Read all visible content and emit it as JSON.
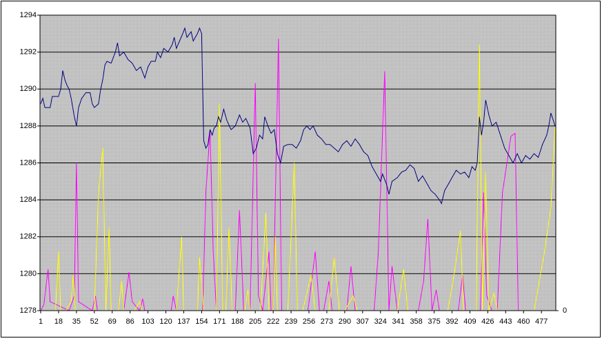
{
  "chart_data": {
    "type": "line",
    "xlim": [
      1,
      490
    ],
    "xticks": [
      1,
      18,
      35,
      52,
      69,
      86,
      103,
      120,
      137,
      154,
      171,
      188,
      205,
      222,
      239,
      256,
      273,
      290,
      307,
      324,
      341,
      358,
      375,
      392,
      409,
      426,
      443,
      460,
      477
    ],
    "ylim": [
      1278,
      1294
    ],
    "yticks": [
      1278,
      1280,
      1282,
      1284,
      1286,
      1288,
      1290,
      1292,
      1294
    ],
    "y2lim": [
      0,
      100
    ],
    "y2ticks": [
      0
    ],
    "grid": true,
    "series": [
      {
        "color": "#000080",
        "x": [
          1,
          3,
          5,
          10,
          12,
          18,
          20,
          22,
          24,
          26,
          28,
          30,
          33,
          35,
          37,
          40,
          44,
          48,
          50,
          52,
          56,
          58,
          60,
          62,
          64,
          68,
          72,
          74,
          76,
          80,
          84,
          88,
          92,
          96,
          100,
          103,
          106,
          110,
          112,
          115,
          118,
          122,
          126,
          128,
          130,
          133,
          136,
          138,
          140,
          144,
          146,
          150,
          152,
          154,
          155,
          156,
          158,
          160,
          162,
          164,
          166,
          168,
          170,
          172,
          175,
          178,
          182,
          186,
          190,
          193,
          196,
          200,
          203,
          206,
          209,
          212,
          214,
          217,
          220,
          223,
          226,
          229,
          232,
          236,
          240,
          244,
          248,
          251,
          254,
          257,
          260,
          264,
          268,
          272,
          276,
          280,
          284,
          288,
          292,
          296,
          300,
          304,
          308,
          312,
          316,
          320,
          324,
          326,
          330,
          332,
          335,
          340,
          344,
          348,
          352,
          356,
          360,
          364,
          368,
          372,
          376,
          380,
          382,
          385,
          388,
          392,
          396,
          400,
          404,
          408,
          411,
          414,
          416,
          418,
          420,
          422,
          424,
          427,
          430,
          434,
          438,
          442,
          446,
          450,
          454,
          458,
          462,
          466,
          470,
          474,
          478,
          482,
          484,
          486,
          490
        ],
        "values": [
          1289.2,
          1289.5,
          1289.0,
          1289.0,
          1289.6,
          1289.6,
          1290.0,
          1291.0,
          1290.5,
          1290.2,
          1290.0,
          1289.5,
          1288.5,
          1288.0,
          1289.0,
          1289.5,
          1289.8,
          1289.8,
          1289.2,
          1289.0,
          1289.2,
          1290.0,
          1290.5,
          1291.3,
          1291.5,
          1291.4,
          1292.0,
          1292.5,
          1291.8,
          1292.0,
          1291.6,
          1291.4,
          1291.0,
          1291.2,
          1290.6,
          1291.2,
          1291.5,
          1291.5,
          1292.0,
          1291.7,
          1292.2,
          1292.0,
          1292.4,
          1292.8,
          1292.2,
          1292.6,
          1293.0,
          1293.3,
          1292.8,
          1293.1,
          1292.6,
          1293.0,
          1293.3,
          1293.0,
          1290.0,
          1287.2,
          1286.8,
          1287.0,
          1287.8,
          1287.5,
          1287.9,
          1288.0,
          1288.5,
          1288.2,
          1288.9,
          1288.3,
          1287.8,
          1288.0,
          1288.6,
          1288.2,
          1288.4,
          1287.9,
          1286.5,
          1286.8,
          1287.5,
          1287.3,
          1288.5,
          1288.0,
          1287.6,
          1287.8,
          1286.5,
          1286.0,
          1286.9,
          1287.0,
          1287.0,
          1286.8,
          1287.2,
          1287.8,
          1288.0,
          1287.8,
          1288.0,
          1287.5,
          1287.3,
          1287.0,
          1287.0,
          1286.8,
          1286.6,
          1287.0,
          1287.2,
          1286.9,
          1287.3,
          1287.0,
          1286.6,
          1286.4,
          1285.8,
          1285.4,
          1285.0,
          1285.4,
          1284.8,
          1284.3,
          1285.0,
          1285.2,
          1285.5,
          1285.6,
          1285.9,
          1285.7,
          1285.0,
          1285.3,
          1284.9,
          1284.5,
          1284.3,
          1284.0,
          1283.8,
          1284.5,
          1284.8,
          1285.2,
          1285.6,
          1285.4,
          1285.5,
          1285.2,
          1285.8,
          1285.6,
          1286.0,
          1288.5,
          1287.5,
          1288.2,
          1289.4,
          1288.6,
          1288.0,
          1288.2,
          1287.5,
          1286.8,
          1286.4,
          1286.0,
          1286.5,
          1286.0,
          1286.4,
          1286.2,
          1286.5,
          1286.3,
          1287.0,
          1287.5,
          1288.0,
          1288.7,
          1288.0
        ]
      },
      {
        "color": "#ff00ff",
        "axis": "y2",
        "x": [
          1,
          4,
          8,
          10,
          28,
          33,
          35,
          37,
          50,
          53,
          55,
          80,
          85,
          88,
          95,
          98,
          100,
          125,
          127,
          130,
          155,
          158,
          162,
          165,
          168,
          186,
          190,
          194,
          200,
          205,
          208,
          212,
          218,
          220,
          222,
          227,
          230,
          255,
          262,
          266,
          270,
          275,
          278,
          292,
          296,
          300,
          318,
          322,
          328,
          332,
          335,
          340,
          360,
          365,
          369,
          373,
          377,
          380,
          398,
          402,
          405,
          419,
          422,
          425,
          430,
          435,
          440,
          448,
          452,
          455
        ],
        "values": [
          0,
          2,
          14,
          3,
          0,
          5,
          50,
          3,
          0,
          5,
          0,
          0,
          13,
          3,
          0,
          4,
          0,
          0,
          5,
          0,
          0,
          40,
          61,
          20,
          0,
          0,
          34,
          0,
          0,
          77,
          5,
          0,
          20,
          0,
          0,
          92,
          0,
          0,
          20,
          0,
          0,
          10,
          0,
          0,
          15,
          0,
          0,
          20,
          81,
          0,
          15,
          0,
          0,
          10,
          31,
          0,
          7,
          0,
          0,
          12,
          0,
          0,
          40,
          5,
          0,
          0,
          40,
          59,
          60,
          0
        ]
      },
      {
        "color": "#ffff00",
        "axis": "y2",
        "x": [
          1,
          15,
          18,
          20,
          25,
          30,
          32,
          34,
          52,
          56,
          60,
          63,
          66,
          68,
          75,
          78,
          80,
          90,
          95,
          97,
          130,
          135,
          137,
          150,
          152,
          156,
          168,
          171,
          174,
          177,
          180,
          183,
          195,
          198,
          200,
          210,
          215,
          218,
          222,
          224,
          226,
          236,
          242,
          245,
          250,
          258,
          262,
          275,
          280,
          285,
          290,
          298,
          302,
          340,
          346,
          350,
          388,
          393,
          400,
          403,
          415,
          418,
          421,
          424,
          427,
          432,
          435,
          470,
          480,
          486,
          490
        ],
        "values": [
          0,
          0,
          20,
          0,
          0,
          3,
          12,
          0,
          0,
          40,
          55,
          0,
          28,
          0,
          0,
          10,
          0,
          0,
          3,
          0,
          0,
          25,
          0,
          0,
          18,
          0,
          0,
          70,
          0,
          0,
          28,
          0,
          0,
          7,
          0,
          0,
          33,
          0,
          0,
          25,
          0,
          0,
          50,
          0,
          0,
          12,
          0,
          0,
          18,
          0,
          0,
          5,
          0,
          0,
          14,
          0,
          0,
          10,
          27,
          0,
          0,
          90,
          0,
          47,
          0,
          6,
          0,
          0,
          20,
          35,
          62
        ]
      }
    ]
  }
}
